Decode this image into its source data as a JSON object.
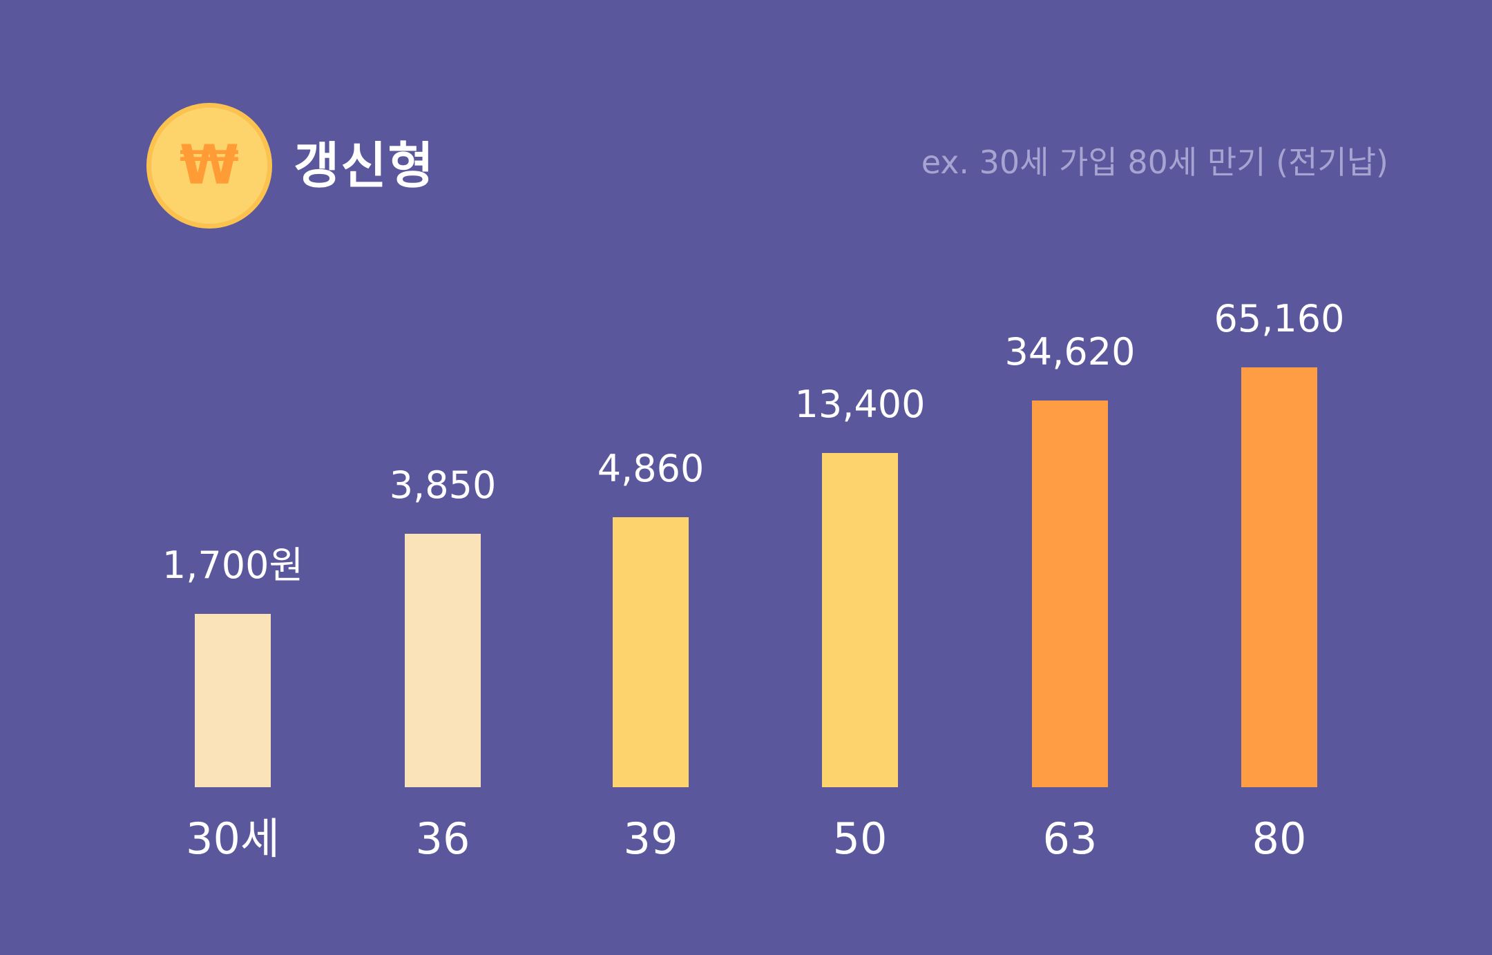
{
  "header": {
    "icon": "won-coin-icon",
    "coin_symbol": "₩",
    "title": "갱신형",
    "subtitle": "ex. 30세 가입 80세 만기 (전기납)"
  },
  "chart_data": {
    "type": "bar",
    "title": "갱신형",
    "subtitle": "ex. 30세 가입 80세 만기 (전기납)",
    "categories": [
      "30세",
      "36",
      "39",
      "50",
      "63",
      "80"
    ],
    "values": [
      1700,
      3850,
      4860,
      13400,
      34620,
      65160
    ],
    "value_labels": [
      "1,700원",
      "3,850",
      "4,860",
      "13,400",
      "34,620",
      "65,160"
    ],
    "unit": "원",
    "bar_colors": [
      "#FAE3B9",
      "#FAE3B9",
      "#FDD36E",
      "#FDD36E",
      "#FF9D45",
      "#FF9D45"
    ],
    "background": "#5A579D",
    "grid": false,
    "axes_visible": false
  }
}
